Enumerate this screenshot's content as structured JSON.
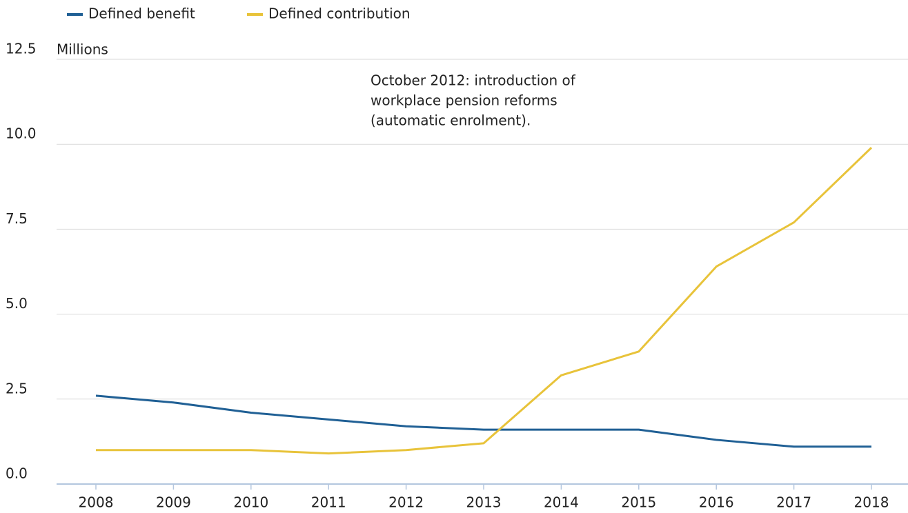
{
  "chart_data": {
    "type": "line",
    "y_label": "Millions",
    "annotation": [
      "October 2012: introduction of",
      "workplace pension reforms",
      "(automatic enrolment)."
    ],
    "categories": [
      "2008",
      "2009",
      "2010",
      "2011",
      "2012",
      "2013",
      "2014",
      "2015",
      "2016",
      "2017",
      "2018"
    ],
    "series": [
      {
        "name": "Defined benefit",
        "color": "#206095",
        "values": [
          2.6,
          2.4,
          2.1,
          1.9,
          1.7,
          1.6,
          1.6,
          1.6,
          1.3,
          1.1,
          1.1
        ]
      },
      {
        "name": "Defined contribution",
        "color": "#e8c33a",
        "values": [
          1.0,
          1.0,
          1.0,
          0.9,
          1.0,
          1.2,
          3.2,
          3.9,
          6.4,
          7.7,
          9.9
        ]
      }
    ],
    "ylim": [
      0,
      12.5
    ],
    "yticks": [
      {
        "value": 0,
        "label": "0.0"
      },
      2.5,
      {
        "value": 5,
        "label": "5.0"
      },
      7.5,
      {
        "value": 10,
        "label": "10.0"
      },
      12.5
    ],
    "grid": true,
    "legend": "top"
  }
}
